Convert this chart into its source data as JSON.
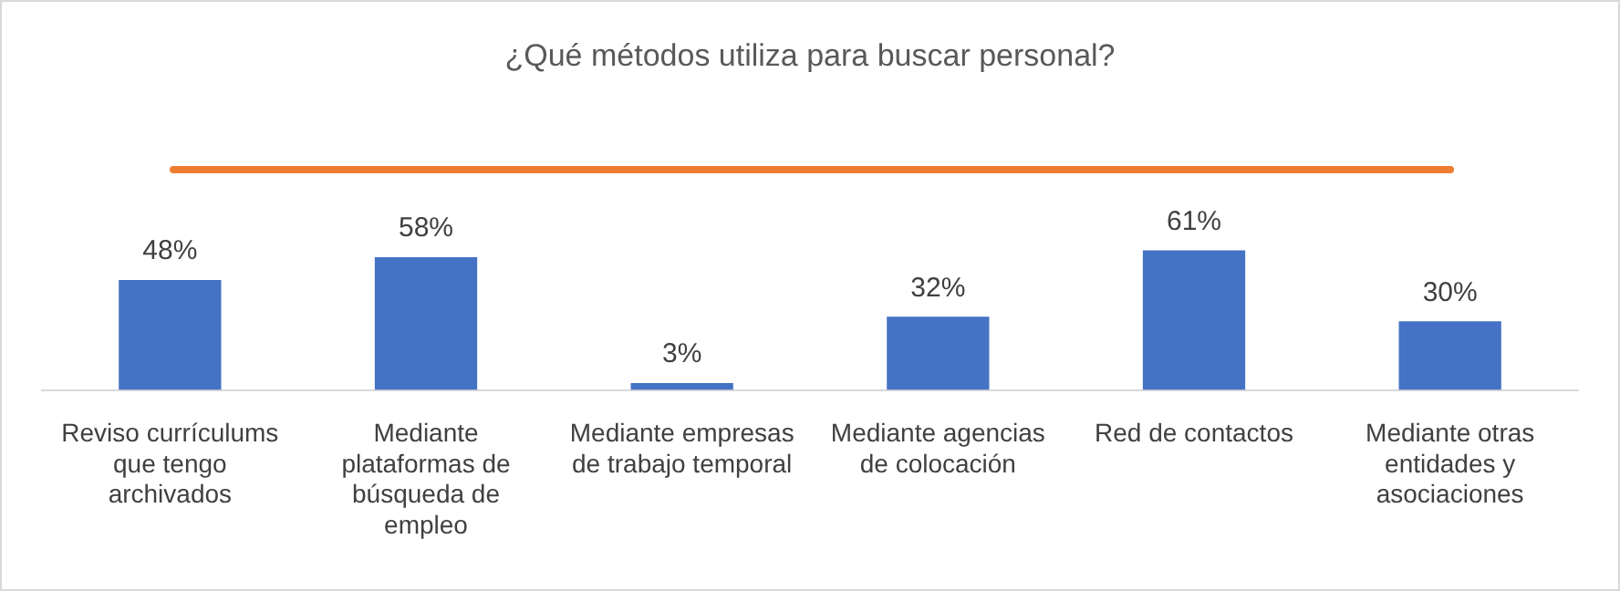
{
  "chart_data": {
    "type": "bar",
    "title": "¿Qué métodos utiliza para buscar personal?",
    "categories": [
      "Reviso currículums que tengo archivados",
      "Mediante plataformas de búsqueda de empleo",
      "Mediante empresas de trabajo temporal",
      "Mediante agencias de colocación",
      "Red de contactos",
      "Mediante otras entidades y asociaciones"
    ],
    "values": [
      48,
      58,
      3,
      32,
      61,
      30
    ],
    "value_labels": [
      "48%",
      "58%",
      "3%",
      "32%",
      "61%",
      "30%"
    ],
    "color": "#4472c4",
    "legend": false,
    "grid": false
  }
}
